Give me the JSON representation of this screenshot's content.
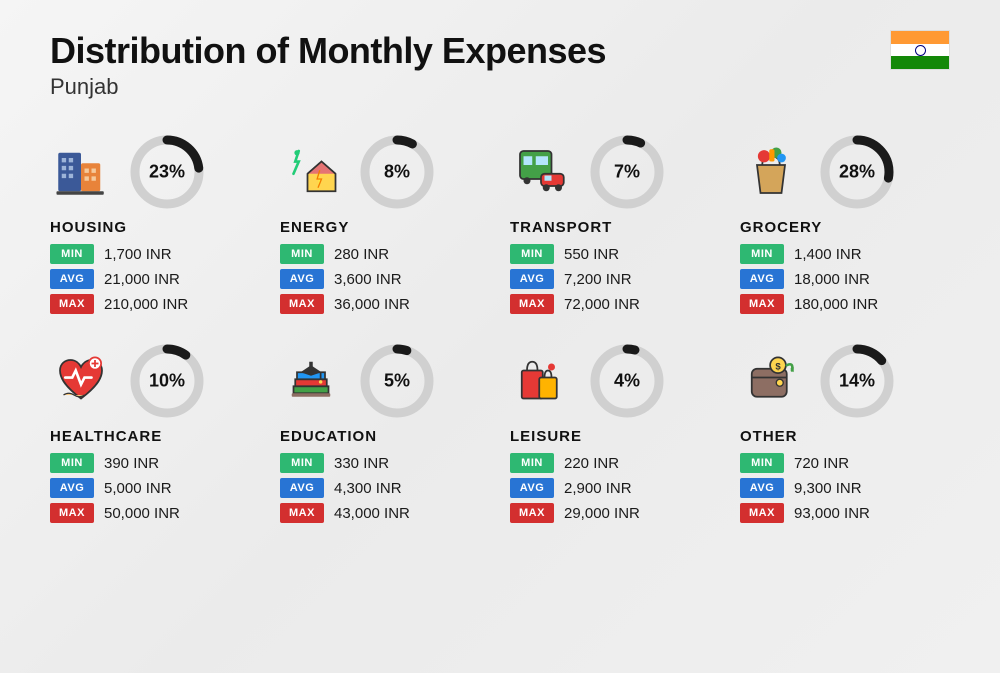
{
  "title": "Distribution of Monthly Expenses",
  "subtitle": "Punjab",
  "labels": {
    "min": "MIN",
    "avg": "AVG",
    "max": "MAX"
  },
  "colors": {
    "min_bg": "#2eb872",
    "avg_bg": "#2874d4",
    "max_bg": "#d32f2f",
    "ring_bg": "#d0d0d0",
    "ring_fg": "#1a1a1a"
  },
  "ring": {
    "radius": 32,
    "stroke_width": 9,
    "size": 74
  },
  "flag": {
    "saffron": "#ff9933",
    "white": "#ffffff",
    "green": "#138808",
    "chakra": "#000080"
  },
  "categories": [
    {
      "name": "HOUSING",
      "percent": 23,
      "percent_label": "23%",
      "min": "1,700 INR",
      "avg": "21,000 INR",
      "max": "210,000 INR",
      "icon": "housing-icon"
    },
    {
      "name": "ENERGY",
      "percent": 8,
      "percent_label": "8%",
      "min": "280 INR",
      "avg": "3,600 INR",
      "max": "36,000 INR",
      "icon": "energy-icon"
    },
    {
      "name": "TRANSPORT",
      "percent": 7,
      "percent_label": "7%",
      "min": "550 INR",
      "avg": "7,200 INR",
      "max": "72,000 INR",
      "icon": "transport-icon"
    },
    {
      "name": "GROCERY",
      "percent": 28,
      "percent_label": "28%",
      "min": "1,400 INR",
      "avg": "18,000 INR",
      "max": "180,000 INR",
      "icon": "grocery-icon"
    },
    {
      "name": "HEALTHCARE",
      "percent": 10,
      "percent_label": "10%",
      "min": "390 INR",
      "avg": "5,000 INR",
      "max": "50,000 INR",
      "icon": "healthcare-icon"
    },
    {
      "name": "EDUCATION",
      "percent": 5,
      "percent_label": "5%",
      "min": "330 INR",
      "avg": "4,300 INR",
      "max": "43,000 INR",
      "icon": "education-icon"
    },
    {
      "name": "LEISURE",
      "percent": 4,
      "percent_label": "4%",
      "min": "220 INR",
      "avg": "2,900 INR",
      "max": "29,000 INR",
      "icon": "leisure-icon"
    },
    {
      "name": "OTHER",
      "percent": 14,
      "percent_label": "14%",
      "min": "720 INR",
      "avg": "9,300 INR",
      "max": "93,000 INR",
      "icon": "other-icon"
    }
  ]
}
